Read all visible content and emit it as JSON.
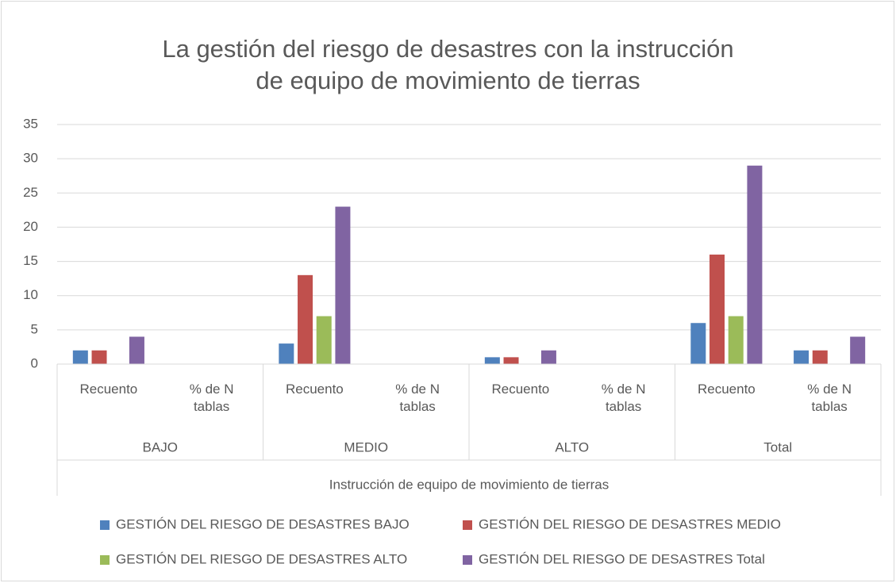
{
  "chart_data": {
    "type": "bar",
    "title": "La gestión del riesgo de desastres con la instrucción de equipo de movimiento de tierras",
    "categories": [
      "Recuento",
      "% de N tablas",
      "Recuento",
      "% de N tablas",
      "Recuento",
      "% de N tablas",
      "Recuento",
      "% de N tablas"
    ],
    "groups": [
      "BAJO",
      "MEDIO",
      "ALTO",
      "Total"
    ],
    "xlabel": "Instrucción de equipo de movimiento de tierras",
    "series": [
      {
        "name": "GESTIÓN DEL RIESGO DE DESASTRES BAJO",
        "color": "#4f81bd",
        "values": [
          2,
          0,
          3,
          0,
          1,
          0,
          6,
          2
        ]
      },
      {
        "name": "GESTIÓN DEL RIESGO DE DESASTRES MEDIO",
        "color": "#c0504d",
        "values": [
          2,
          0,
          13,
          0,
          1,
          0,
          16,
          2
        ]
      },
      {
        "name": "GESTIÓN DEL RIESGO DE DESASTRES ALTO",
        "color": "#9bbb59",
        "values": [
          0,
          0,
          7,
          0,
          0,
          0,
          7,
          0
        ]
      },
      {
        "name": "GESTIÓN DEL RIESGO DE DESASTRES Total",
        "color": "#8064a2",
        "values": [
          4,
          0,
          23,
          0,
          2,
          0,
          29,
          4
        ]
      }
    ],
    "ylim": [
      0,
      35
    ],
    "yticks": [
      0,
      5,
      10,
      15,
      20,
      25,
      30,
      35
    ],
    "grid": true
  }
}
